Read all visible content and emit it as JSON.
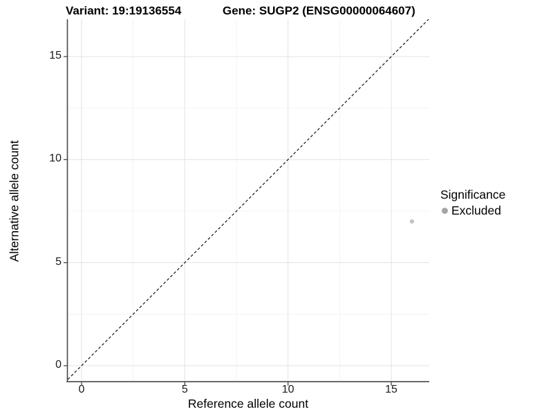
{
  "title": {
    "variant": "Variant: 19:19136554",
    "gene": "Gene: SUGP2 (ENSG00000064607)"
  },
  "axes": {
    "x": {
      "label": "Reference allele count",
      "tick_labels": [
        "0",
        "5",
        "10",
        "15"
      ]
    },
    "y": {
      "label": "Alternative allele count",
      "tick_labels": [
        "0",
        "5",
        "10",
        "15"
      ]
    }
  },
  "legend": {
    "title": "Significance",
    "entries": [
      {
        "label": "Excluded",
        "color": "#a6a6a6"
      }
    ]
  },
  "colors": {
    "background": "#ffffff",
    "axis_line": "#474747",
    "grid_major": "#e3e3e3",
    "grid_minor": "#f0f0f0",
    "identity_line": "#111111",
    "point": "#c5c5c5",
    "legend_key": "#a6a6a6",
    "tick_text": "#1a1a1a"
  },
  "chart_data": {
    "type": "scatter",
    "title": "Variant: 19:19136554    Gene: SUGP2 (ENSG00000064607)",
    "xlabel": "Reference allele count",
    "ylabel": "Alternative allele count",
    "xlim": [
      -0.8,
      16.84
    ],
    "ylim": [
      -0.77,
      16.8
    ],
    "x_ticks": [
      0,
      5,
      10,
      15
    ],
    "y_ticks": [
      0,
      5,
      10,
      15
    ],
    "grid": true,
    "grid_minor": true,
    "points": [
      {
        "x": 16,
        "y": 7,
        "series": "Excluded"
      }
    ],
    "identity_line": {
      "style": "dashed",
      "from": [
        -1,
        -1
      ],
      "to": [
        18,
        18
      ]
    },
    "legend": {
      "title": "Significance",
      "position": "right",
      "entries": [
        "Excluded"
      ]
    }
  }
}
